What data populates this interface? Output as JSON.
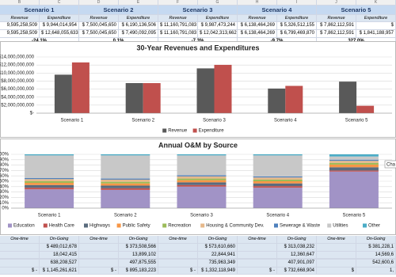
{
  "column_letters": [
    "B",
    "C",
    "D",
    "E",
    "F",
    "G",
    "H",
    "I",
    "J",
    "K"
  ],
  "top_table": {
    "headers": [
      "Scenario 1",
      "Scenario 2",
      "Scenario 3",
      "Scenario 4",
      "Scenario 5"
    ],
    "subheaders": [
      "Revenue",
      "Expenditure"
    ],
    "rows": [
      [
        "9,595,258,509",
        "$ 9,944,014,954",
        "$ 7,500,045,650",
        "$ 6,190,136,506",
        "$ 11,160,791,083",
        "$ 9,987,473,244",
        "$ 6,138,464,269",
        "$ 5,326,512,155",
        "$ 7,862,112,591",
        "$"
      ],
      [
        "9,595,258,509",
        "$ 12,648,055,633",
        "$ 7,500,045,650",
        "$ 7,490,092,095",
        "$ 11,160,791,083",
        "$ 12,042,313,662",
        "$ 6,138,464,269",
        "$ 6,799,469,870",
        "$ 7,862,112,591",
        "$ 1,841,188,957"
      ]
    ],
    "changes": [
      "-24.1%",
      "0.1%",
      "-7.3%",
      "-9.7%",
      "327.0%"
    ]
  },
  "chart_data": [
    {
      "type": "bar",
      "title": "30-Year Revenues and Expenditures",
      "categories": [
        "Scenario 1",
        "Scenario 2",
        "Scenario 3",
        "Scenario 4",
        "Scenario 5"
      ],
      "series": [
        {
          "name": "Revenue",
          "color": "#595959",
          "values": [
            9595258509,
            7500045650,
            11160791083,
            6138464269,
            7862112591
          ]
        },
        {
          "name": "Expenditure",
          "color": "#c0504d",
          "values": [
            12648055633,
            7490092095,
            12042313662,
            6799469870,
            1841188957
          ]
        }
      ],
      "ylim": [
        0,
        14000000000
      ],
      "yticks": [
        {
          "value": 0,
          "label": "$-"
        },
        {
          "value": 2000000000,
          "label": "$2,000,000,000"
        },
        {
          "value": 4000000000,
          "label": "$4,000,000,000"
        },
        {
          "value": 6000000000,
          "label": "$6,000,000,000"
        },
        {
          "value": 8000000000,
          "label": "$8,000,000,000"
        },
        {
          "value": 10000000000,
          "label": "$10,000,000,000"
        },
        {
          "value": 12000000000,
          "label": "$12,000,000,000"
        },
        {
          "value": 14000000000,
          "label": "$14,000,000,000"
        }
      ],
      "grid": true,
      "legend": "bottom"
    },
    {
      "type": "stacked_bar",
      "title": "Annual O&M by Source",
      "categories": [
        "Scenario 1",
        "Scenario 2",
        "Scenario 3",
        "Scenario 4",
        "Scenario 5"
      ],
      "series": [
        {
          "name": "Education",
          "color": "#a193c6",
          "values": [
            35,
            34,
            40,
            38,
            68
          ]
        },
        {
          "name": "Health Care",
          "color": "#c0504d",
          "values": [
            3,
            3,
            3,
            3,
            2
          ]
        },
        {
          "name": "Highways",
          "color": "#5a6b7d",
          "values": [
            5,
            5,
            5,
            5,
            6
          ]
        },
        {
          "name": "Public Safety",
          "color": "#f79646",
          "values": [
            4,
            4,
            4,
            4,
            5
          ]
        },
        {
          "name": "Recreation",
          "color": "#9bbb59",
          "values": [
            3,
            3,
            3,
            3,
            3
          ]
        },
        {
          "name": "Housing & Community Dev.",
          "color": "#e6b88a",
          "values": [
            4,
            4,
            4,
            4,
            4
          ]
        },
        {
          "name": "Sewerage & Waste",
          "color": "#4f81bd",
          "values": [
            2,
            2,
            2,
            2,
            2
          ]
        },
        {
          "name": "Utilities",
          "color": "#c8c8c8",
          "values": [
            42,
            43,
            37,
            39,
            6
          ]
        },
        {
          "name": "Other",
          "color": "#4bacc6",
          "values": [
            2,
            2,
            2,
            2,
            4
          ]
        }
      ],
      "ylim": [
        0,
        100
      ],
      "yticks": [
        {
          "value": 0,
          "label": "0%"
        },
        {
          "value": 10,
          "label": "10%"
        },
        {
          "value": 20,
          "label": "20%"
        },
        {
          "value": 30,
          "label": "30%"
        },
        {
          "value": 40,
          "label": "40%"
        },
        {
          "value": 50,
          "label": "50%"
        },
        {
          "value": 60,
          "label": "60%"
        },
        {
          "value": 70,
          "label": "70%"
        },
        {
          "value": 80,
          "label": "80%"
        },
        {
          "value": 90,
          "label": "90%"
        },
        {
          "value": 100,
          "label": "100%"
        }
      ],
      "grid": true,
      "legend": "bottom",
      "tooltip": "Cha"
    }
  ],
  "bottom_table": {
    "headers": [
      "One-time",
      "On-Going"
    ],
    "rows": [
      [
        "",
        "$ 489,012,678",
        "",
        "$ 373,508,566",
        "",
        "$ 573,610,660",
        "",
        "$ 313,038,232",
        "",
        "$ 381,228,1"
      ],
      [
        "",
        "18,042,415",
        "",
        "13,899,102",
        "",
        "22,844,941",
        "",
        "12,360,647",
        "",
        "14,569,6"
      ],
      [
        "",
        "",
        "",
        "",
        "",
        "",
        "",
        "",
        "",
        ""
      ],
      [
        "",
        "638,208,527",
        "",
        "497,875,555",
        "",
        "735,963,349",
        "",
        "407,901,097",
        "",
        "542,600,6"
      ],
      [
        "$ -",
        "$ 1,145,261,621",
        "$ -",
        "$ 895,183,223",
        "$ -",
        "$ 1,332,118,949",
        "$ -",
        "$ 732,668,904",
        "$",
        "1,"
      ]
    ]
  }
}
